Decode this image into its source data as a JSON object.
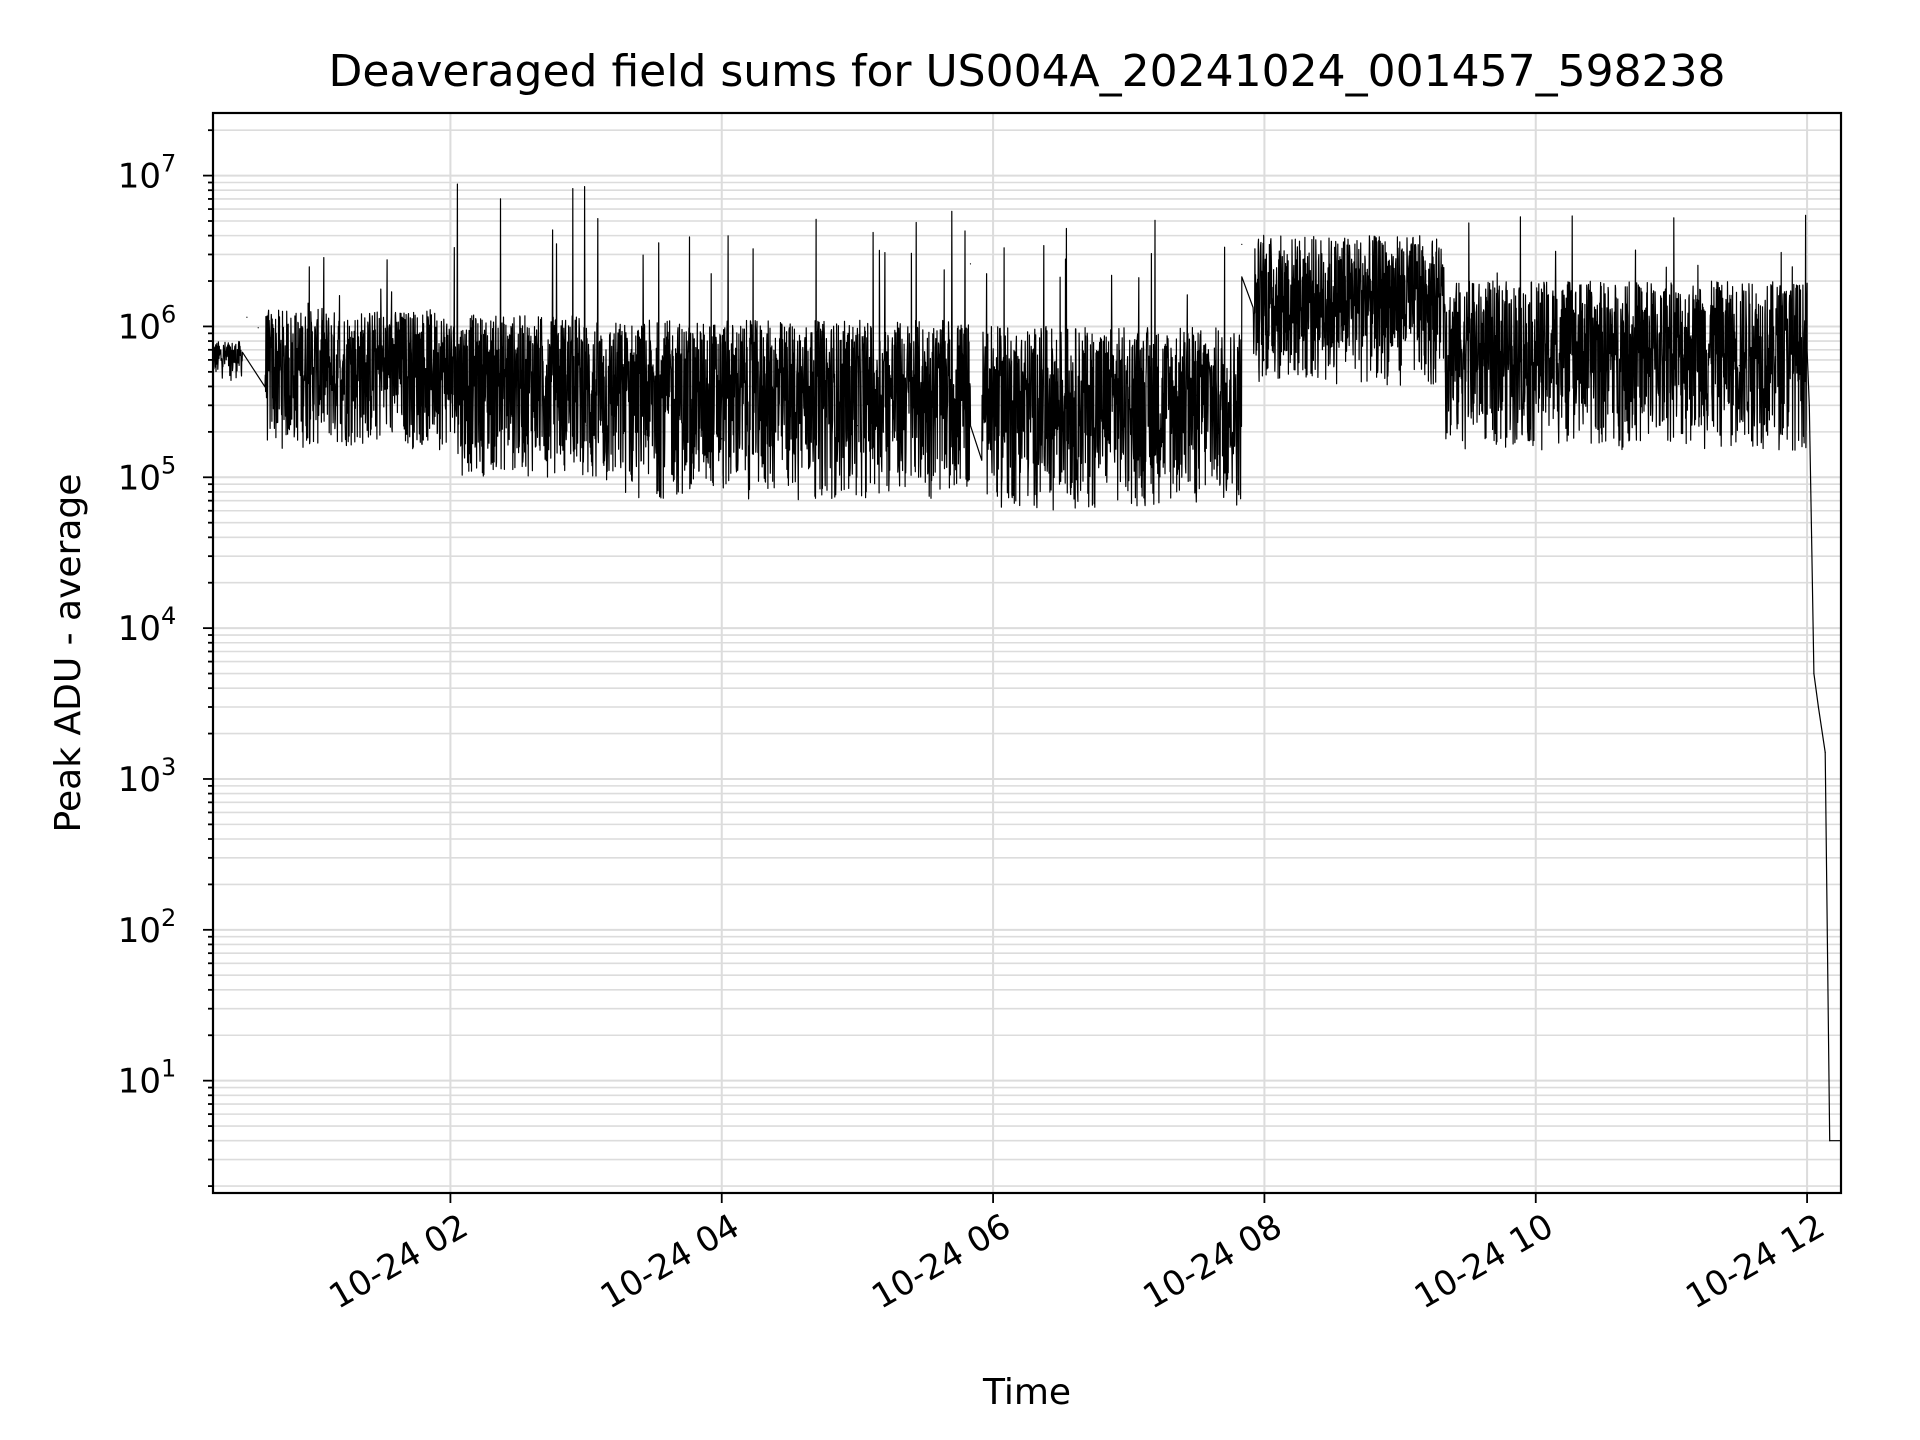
{
  "chart_data": {
    "type": "line",
    "title": "Deaveraged field sums for US004A_20241024_001457_598238",
    "xlabel": "Time",
    "ylabel": "Peak ADU - average",
    "y_scale": "log",
    "ylim": [
      1.8,
      26000000
    ],
    "xlim": [
      "2024-10-24T00:15:00",
      "2024-10-24T12:15:00"
    ],
    "x_ticks": [
      {
        "value": "2024-10-24T02:00:00",
        "label": "10-24 02"
      },
      {
        "value": "2024-10-24T04:00:00",
        "label": "10-24 04"
      },
      {
        "value": "2024-10-24T06:00:00",
        "label": "10-24 06"
      },
      {
        "value": "2024-10-24T08:00:00",
        "label": "10-24 08"
      },
      {
        "value": "2024-10-24T10:00:00",
        "label": "10-24 10"
      },
      {
        "value": "2024-10-24T12:00:00",
        "label": "10-24 12"
      }
    ],
    "y_ticks": [
      {
        "value": 10,
        "base": "10",
        "exp": "1"
      },
      {
        "value": 100,
        "base": "10",
        "exp": "2"
      },
      {
        "value": 1000,
        "base": "10",
        "exp": "3"
      },
      {
        "value": 10000,
        "base": "10",
        "exp": "4"
      },
      {
        "value": 100000,
        "base": "10",
        "exp": "5"
      },
      {
        "value": 1000000,
        "base": "10",
        "exp": "6"
      },
      {
        "value": 10000000,
        "base": "10",
        "exp": "7"
      }
    ],
    "grid": true,
    "legend": "none",
    "series": [
      {
        "color": "#000000",
        "points": [
          [
            "2024-10-24T00:15:00",
            560000
          ],
          [
            "2024-10-24T00:25:00",
            600000
          ],
          [
            "2024-10-24T00:30:00",
            1150000
          ],
          [
            "2024-10-24T00:35:00",
            980000
          ],
          [
            "2024-10-24T00:45:00",
            560000
          ],
          [
            "2024-10-24T01:00:00",
            700000
          ],
          [
            "2024-10-24T01:30:00",
            620000
          ],
          [
            "2024-10-24T02:00:00",
            450000
          ],
          [
            "2024-10-24T02:30:00",
            300000
          ],
          [
            "2024-10-24T03:00:00",
            220000
          ],
          [
            "2024-10-24T03:30:00",
            200000
          ],
          [
            "2024-10-24T04:00:00",
            180000
          ],
          [
            "2024-10-24T04:30:00",
            200000
          ],
          [
            "2024-10-24T05:00:00",
            220000
          ],
          [
            "2024-10-24T05:30:00",
            280000
          ],
          [
            "2024-10-24T05:50:00",
            2600000
          ],
          [
            "2024-10-24T06:00:00",
            300000
          ],
          [
            "2024-10-24T06:30:00",
            220000
          ],
          [
            "2024-10-24T07:00:00",
            300000
          ],
          [
            "2024-10-24T07:30:00",
            350000
          ],
          [
            "2024-10-24T07:50:00",
            3500000
          ],
          [
            "2024-10-24T08:00:00",
            600000
          ],
          [
            "2024-10-24T08:30:00",
            1300000
          ],
          [
            "2024-10-24T09:00:00",
            1600000
          ],
          [
            "2024-10-24T09:30:00",
            500000
          ],
          [
            "2024-10-24T10:00:00",
            450000
          ],
          [
            "2024-10-24T10:30:00",
            600000
          ],
          [
            "2024-10-24T11:00:00",
            600000
          ],
          [
            "2024-10-24T11:30:00",
            550000
          ],
          [
            "2024-10-24T12:00:00",
            700000
          ],
          [
            "2024-10-24T12:01:00",
            300000
          ],
          [
            "2024-10-24T12:02:00",
            40000
          ],
          [
            "2024-10-24T12:03:00",
            5000
          ],
          [
            "2024-10-24T12:05:00",
            3000
          ],
          [
            "2024-10-24T12:08:00",
            1500
          ],
          [
            "2024-10-24T12:10:00",
            4
          ],
          [
            "2024-10-24T12:15:00",
            4
          ]
        ],
        "noise_regions": [
          {
            "start": "2024-10-24T00:15:00",
            "end": "2024-10-24T00:28:00",
            "low": 450000,
            "high": 800000,
            "spike": 1000000
          },
          {
            "start": "2024-10-24T00:38:00",
            "end": "2024-10-24T02:00:00",
            "low": 150000,
            "high": 1300000,
            "spike": 3000000
          },
          {
            "start": "2024-10-24T02:00:00",
            "end": "2024-10-24T03:00:00",
            "low": 100000,
            "high": 1200000,
            "spike": 12000000
          },
          {
            "start": "2024-10-24T03:00:00",
            "end": "2024-10-24T05:50:00",
            "low": 70000,
            "high": 1100000,
            "spike": 6000000
          },
          {
            "start": "2024-10-24T05:55:00",
            "end": "2024-10-24T07:50:00",
            "low": 60000,
            "high": 1000000,
            "spike": 5500000
          },
          {
            "start": "2024-10-24T07:55:00",
            "end": "2024-10-24T09:20:00",
            "low": 400000,
            "high": 4000000,
            "spike": 5000000
          },
          {
            "start": "2024-10-24T09:20:00",
            "end": "2024-10-24T12:00:00",
            "low": 150000,
            "high": 2000000,
            "spike": 5500000
          }
        ]
      }
    ]
  }
}
